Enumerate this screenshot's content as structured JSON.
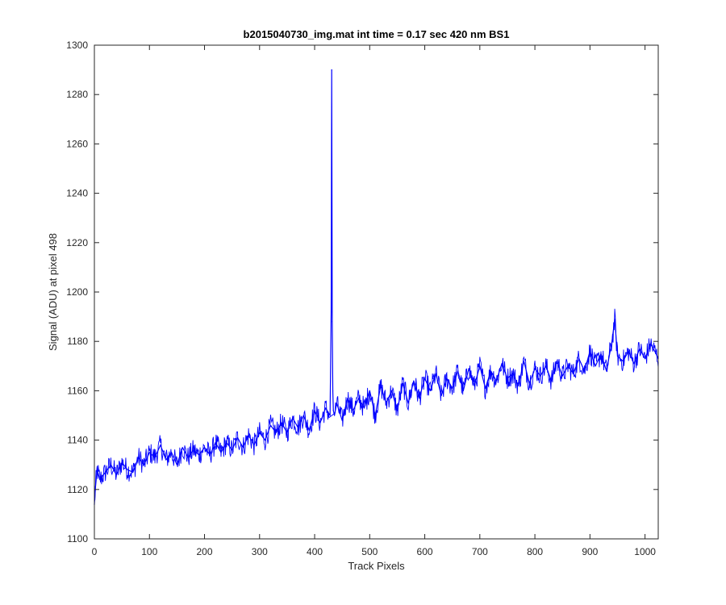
{
  "chart_data": {
    "type": "line",
    "title": "b2015040730_img.mat int time = 0.17 sec  420 nm BS1",
    "xlabel": "Track Pixels",
    "ylabel": "Signal (ADU) at pixel 498",
    "xlim": [
      0,
      1024
    ],
    "ylim": [
      1100,
      1300
    ],
    "xticks": [
      0,
      100,
      200,
      300,
      400,
      500,
      600,
      700,
      800,
      900,
      1000
    ],
    "yticks": [
      1100,
      1120,
      1140,
      1160,
      1180,
      1200,
      1220,
      1240,
      1260,
      1280,
      1300
    ],
    "grid": false,
    "color": "#0000ff",
    "series": [
      {
        "x": [
          0,
          2,
          5,
          10,
          20,
          30,
          40,
          50,
          60,
          70,
          80,
          90,
          100,
          110,
          120,
          130,
          140,
          150,
          160,
          170,
          180,
          190,
          200,
          210,
          220,
          230,
          240,
          250,
          260,
          270,
          280,
          290,
          300,
          310,
          320,
          330,
          340,
          350,
          360,
          370,
          380,
          390,
          400,
          410,
          420,
          428,
          430,
          431,
          432,
          433,
          434,
          436,
          440,
          450,
          460,
          470,
          480,
          490,
          500,
          510,
          520,
          530,
          540,
          550,
          560,
          570,
          580,
          590,
          600,
          610,
          620,
          630,
          640,
          650,
          660,
          670,
          680,
          690,
          700,
          710,
          720,
          730,
          740,
          750,
          760,
          770,
          780,
          790,
          800,
          810,
          820,
          830,
          840,
          850,
          860,
          870,
          880,
          890,
          900,
          910,
          920,
          930,
          940,
          945,
          950,
          960,
          970,
          980,
          990,
          1000,
          1010,
          1020,
          1024
        ],
        "y": [
          1114,
          1121,
          1128,
          1124,
          1127,
          1130,
          1126,
          1131,
          1128,
          1127,
          1133,
          1130,
          1135,
          1133,
          1138,
          1132,
          1135,
          1130,
          1137,
          1133,
          1136,
          1134,
          1137,
          1134,
          1139,
          1135,
          1139,
          1136,
          1141,
          1137,
          1142,
          1138,
          1143,
          1140,
          1146,
          1143,
          1147,
          1143,
          1149,
          1145,
          1150,
          1144,
          1152,
          1147,
          1153,
          1150,
          1192,
          1290,
          1188,
          1160,
          1152,
          1150,
          1155,
          1148,
          1157,
          1152,
          1157,
          1153,
          1160,
          1150,
          1162,
          1155,
          1160,
          1152,
          1163,
          1155,
          1164,
          1157,
          1165,
          1160,
          1167,
          1158,
          1165,
          1161,
          1168,
          1160,
          1169,
          1162,
          1170,
          1161,
          1168,
          1164,
          1171,
          1165,
          1167,
          1162,
          1172,
          1163,
          1169,
          1166,
          1170,
          1164,
          1172,
          1166,
          1170,
          1167,
          1173,
          1168,
          1176,
          1170,
          1175,
          1168,
          1180,
          1189,
          1174,
          1172,
          1176,
          1171,
          1177,
          1173,
          1179,
          1175,
          1173
        ]
      }
    ]
  }
}
